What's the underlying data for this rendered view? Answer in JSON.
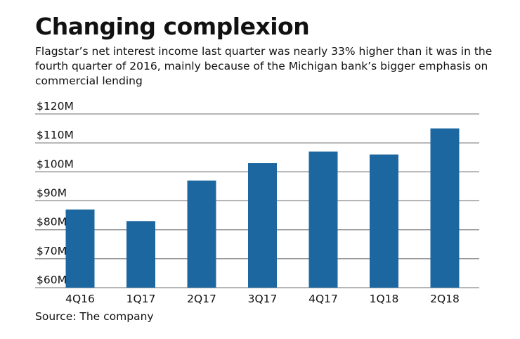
{
  "chart_data": {
    "type": "bar",
    "title": "Changing complexion",
    "subtitle": "Flagstar’s net interest income last quarter was nearly 33% higher than it was in the fourth quarter of 2016, mainly because of the Michigan bank’s bigger emphasis on commercial lending",
    "source": "Source: The company",
    "categories": [
      "4Q16",
      "1Q17",
      "2Q17",
      "3Q17",
      "4Q17",
      "1Q18",
      "2Q18"
    ],
    "values": [
      87,
      83,
      97,
      103,
      107,
      106,
      115
    ],
    "unit": "$M",
    "ylim": [
      60,
      120
    ],
    "yticks": [
      60,
      70,
      80,
      90,
      100,
      110,
      120
    ],
    "ytick_labels": [
      "$60M",
      "$70M",
      "$80M",
      "$90M",
      "$100M",
      "$110M",
      "$120M"
    ],
    "grid": true,
    "bar_color": "#1c67a0",
    "grid_color": "#8a8a8a"
  }
}
